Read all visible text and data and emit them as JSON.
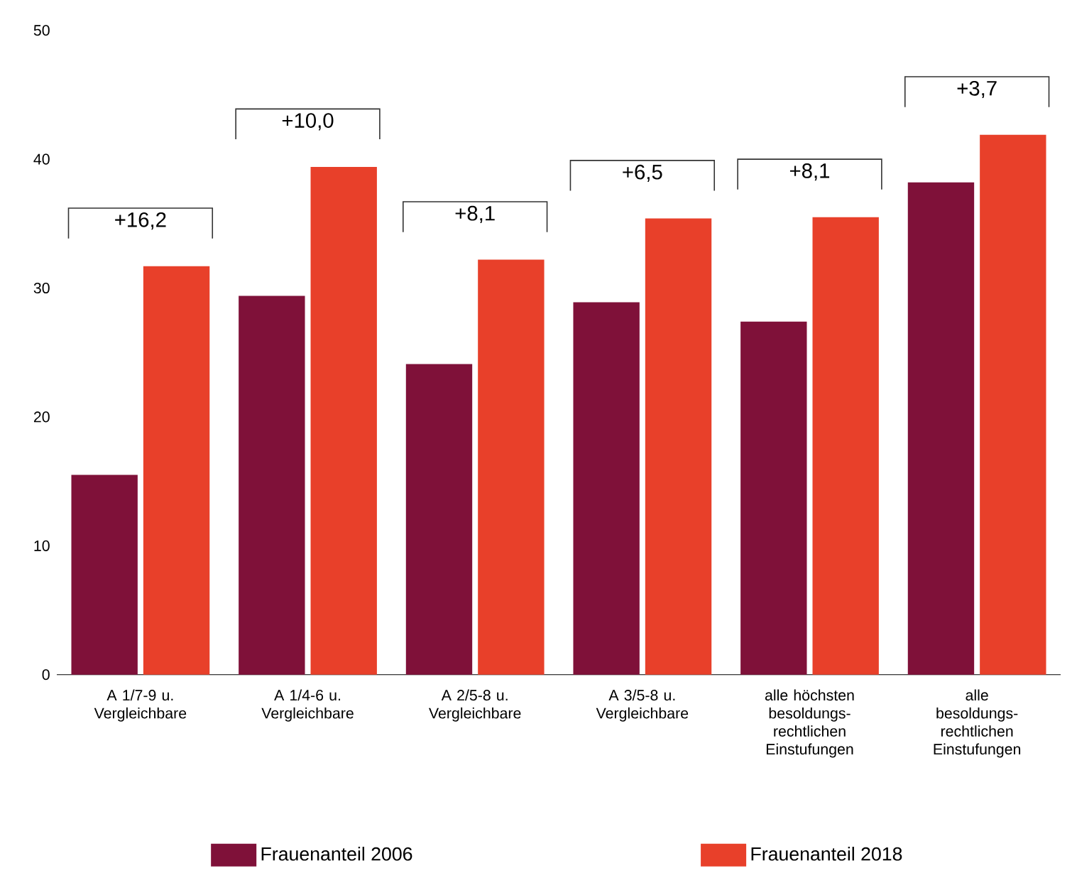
{
  "chart_data": {
    "type": "bar",
    "categories": [
      "A 1/7-9 u. Vergleichbare",
      "A 1/4-6 u. Vergleichbare",
      "A 2/5-8 u. Vergleichbare",
      "A 3/5-8 u. Vergleichbare",
      "alle höchsten besoldungs-rechtlichen Einstufungen",
      "alle besoldungs-rechtlichen Einstufungen"
    ],
    "series": [
      {
        "name": "Frauenanteil 2006",
        "color": "#7f1139",
        "values": [
          15.5,
          29.4,
          24.1,
          28.9,
          27.4,
          38.2
        ]
      },
      {
        "name": "Frauenanteil 2018",
        "color": "#e8402a",
        "values": [
          31.7,
          39.4,
          32.2,
          35.4,
          35.5,
          41.9
        ]
      }
    ],
    "ylim": [
      0,
      50
    ],
    "yticks": [
      0,
      10,
      20,
      30,
      40,
      50
    ],
    "legend": "bottom",
    "annotations": [
      "+16,2",
      "+10,0",
      "+8,1",
      "+6,5",
      "+8,1",
      "+3,7"
    ]
  }
}
